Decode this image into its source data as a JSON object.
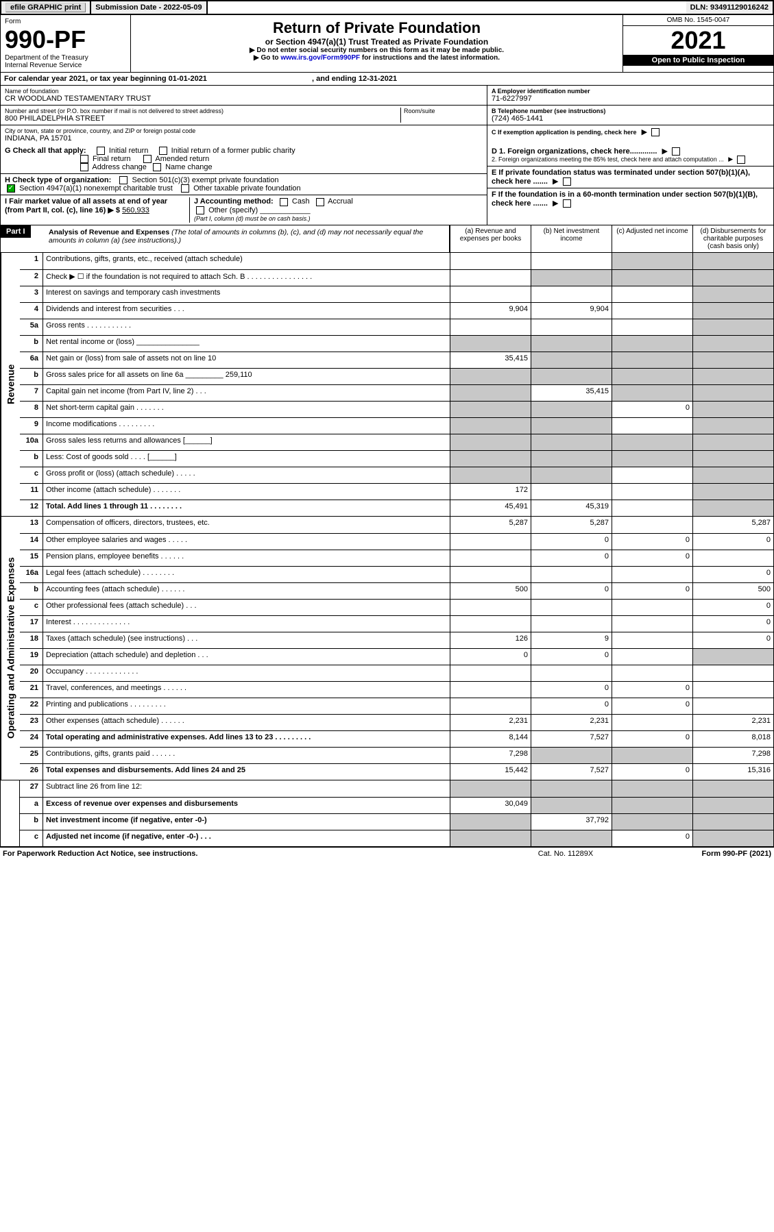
{
  "topBar": {
    "efile": "efile GRAPHIC print",
    "submission": "Submission Date - 2022-05-09",
    "dln": "DLN: 93491129016242"
  },
  "header": {
    "formWord": "Form",
    "formNum": "990-PF",
    "dept": "Department of the Treasury",
    "irs": "Internal Revenue Service",
    "title": "Return of Private Foundation",
    "subtitle": "or Section 4947(a)(1) Trust Treated as Private Foundation",
    "line1": "Do not enter social security numbers on this form as it may be made public.",
    "line2a": "Go to ",
    "line2link": "www.irs.gov/Form990PF",
    "line2b": " for instructions and the latest information.",
    "omb": "OMB No. 1545-0047",
    "year": "2021",
    "open": "Open to Public Inspection"
  },
  "calYear": {
    "textA": "For calendar year 2021, or tax year beginning ",
    "begin": "01-01-2021",
    "textB": ", and ending ",
    "end": "12-31-2021"
  },
  "entity": {
    "nameLabel": "Name of foundation",
    "name": "CR WOODLAND TESTAMENTARY TRUST",
    "addrLabel": "Number and street (or P.O. box number if mail is not delivered to street address)",
    "addr": "800 PHILADELPHIA STREET",
    "roomLabel": "Room/suite",
    "cityLabel": "City or town, state or province, country, and ZIP or foreign postal code",
    "city": "INDIANA, PA  15701",
    "aLabel": "A Employer identification number",
    "ein": "71-6227997",
    "bLabel": "B Telephone number (see instructions)",
    "phone": "(724) 465-1441",
    "cLabel": "C If exemption application is pending, check here"
  },
  "checks": {
    "gLabel": "G Check all that apply:",
    "g1": "Initial return",
    "g2": "Initial return of a former public charity",
    "g3": "Final return",
    "g4": "Amended return",
    "g5": "Address change",
    "g6": "Name change",
    "hLabel": "H Check type of organization:",
    "h1": "Section 501(c)(3) exempt private foundation",
    "h2": "Section 4947(a)(1) nonexempt charitable trust",
    "h3": "Other taxable private foundation",
    "iLabel": "I Fair market value of all assets at end of year (from Part II, col. (c), line 16) ▶ $",
    "iVal": "560,933",
    "jLabel": "J Accounting method:",
    "j1": "Cash",
    "j2": "Accrual",
    "j3": "Other (specify)",
    "jNote": "(Part I, column (d) must be on cash basis.)",
    "d1": "D 1. Foreign organizations, check here.............",
    "d2": "   2. Foreign organizations meeting the 85% test, check here and attach computation ...",
    "eLabel": "E  If private foundation status was terminated under section 507(b)(1)(A), check here .......",
    "fLabel": "F  If the foundation is in a 60-month termination under section 507(b)(1)(B), check here ......."
  },
  "part1": {
    "label": "Part I",
    "title": "Analysis of Revenue and Expenses",
    "titleNote": " (The total of amounts in columns (b), (c), and (d) may not necessarily equal the amounts in column (a) (see instructions).)",
    "colA": "(a)  Revenue and expenses per books",
    "colB": "(b)  Net investment income",
    "colC": "(c)  Adjusted net income",
    "colD": "(d)  Disbursements for charitable purposes (cash basis only)"
  },
  "sideLabels": {
    "rev": "Revenue",
    "exp": "Operating and Administrative Expenses"
  },
  "rows": [
    {
      "n": "1",
      "d": "Contributions, gifts, grants, etc., received (attach schedule)",
      "a": "",
      "b": "",
      "c": "s",
      "dd": "s"
    },
    {
      "n": "2",
      "d": "Check ▶ ☐ if the foundation is not required to attach Sch. B   .  .  .  .  .  .  .  .  .  .  .  .  .  .  .  .",
      "a": "",
      "b": "s",
      "c": "s",
      "dd": "s",
      "nb": true
    },
    {
      "n": "3",
      "d": "Interest on savings and temporary cash investments",
      "a": "",
      "b": "",
      "c": "",
      "dd": "s"
    },
    {
      "n": "4",
      "d": "Dividends and interest from securities    .   .   .",
      "a": "9,904",
      "b": "9,904",
      "c": "",
      "dd": "s"
    },
    {
      "n": "5a",
      "d": "Gross rents   .   .   .   .   .   .   .   .   .   .   .",
      "a": "",
      "b": "",
      "c": "",
      "dd": "s"
    },
    {
      "n": "b",
      "d": "Net rental income or (loss)  _______________",
      "a": "s",
      "b": "s",
      "c": "s",
      "dd": "s"
    },
    {
      "n": "6a",
      "d": "Net gain or (loss) from sale of assets not on line 10",
      "a": "35,415",
      "b": "s",
      "c": "s",
      "dd": "s"
    },
    {
      "n": "b",
      "d": "Gross sales price for all assets on line 6a _________ 259,110",
      "a": "s",
      "b": "s",
      "c": "s",
      "dd": "s"
    },
    {
      "n": "7",
      "d": "Capital gain net income (from Part IV, line 2)    .   .   .",
      "a": "s",
      "b": "35,415",
      "c": "s",
      "dd": "s"
    },
    {
      "n": "8",
      "d": "Net short-term capital gain   .   .   .   .   .   .   .",
      "a": "s",
      "b": "s",
      "c": "0",
      "dd": "s"
    },
    {
      "n": "9",
      "d": "Income modifications  .   .   .   .   .   .   .   .   .",
      "a": "s",
      "b": "s",
      "c": "",
      "dd": "s"
    },
    {
      "n": "10a",
      "d": "Gross sales less returns and allowances  [______]",
      "a": "s",
      "b": "s",
      "c": "s",
      "dd": "s"
    },
    {
      "n": "b",
      "d": "Less: Cost of goods sold    .   .   .   .   [______]",
      "a": "s",
      "b": "s",
      "c": "s",
      "dd": "s"
    },
    {
      "n": "c",
      "d": "Gross profit or (loss) (attach schedule)    .   .   .   .   .",
      "a": "s",
      "b": "s",
      "c": "",
      "dd": "s"
    },
    {
      "n": "11",
      "d": "Other income (attach schedule)    .   .   .   .   .   .   .",
      "a": "172",
      "b": "",
      "c": "",
      "dd": "s"
    },
    {
      "n": "12",
      "d": "Total. Add lines 1 through 11   .   .   .   .   .   .   .   .",
      "a": "45,491",
      "b": "45,319",
      "c": "",
      "dd": "s",
      "bold": true
    }
  ],
  "rowsExp": [
    {
      "n": "13",
      "d": "Compensation of officers, directors, trustees, etc.",
      "a": "5,287",
      "b": "5,287",
      "c": "",
      "dd": "5,287"
    },
    {
      "n": "14",
      "d": "Other employee salaries and wages    .   .   .   .   .",
      "a": "",
      "b": "0",
      "c": "0",
      "dd": "0"
    },
    {
      "n": "15",
      "d": "Pension plans, employee benefits  .   .   .   .   .   .",
      "a": "",
      "b": "0",
      "c": "0",
      "dd": ""
    },
    {
      "n": "16a",
      "d": "Legal fees (attach schedule)  .   .   .   .   .   .   .   .",
      "a": "",
      "b": "",
      "c": "",
      "dd": "0"
    },
    {
      "n": "b",
      "d": "Accounting fees (attach schedule)  .   .   .   .   .   .",
      "a": "500",
      "b": "0",
      "c": "0",
      "dd": "500"
    },
    {
      "n": "c",
      "d": "Other professional fees (attach schedule)    .   .   .",
      "a": "",
      "b": "",
      "c": "",
      "dd": "0"
    },
    {
      "n": "17",
      "d": "Interest .   .   .   .   .   .   .   .   .   .   .   .   .   .",
      "a": "",
      "b": "",
      "c": "",
      "dd": "0"
    },
    {
      "n": "18",
      "d": "Taxes (attach schedule) (see instructions)    .   .   .",
      "a": "126",
      "b": "9",
      "c": "",
      "dd": "0"
    },
    {
      "n": "19",
      "d": "Depreciation (attach schedule) and depletion   .   .   .",
      "a": "0",
      "b": "0",
      "c": "",
      "dd": "s"
    },
    {
      "n": "20",
      "d": "Occupancy  .   .   .   .   .   .   .   .   .   .   .   .   .",
      "a": "",
      "b": "",
      "c": "",
      "dd": ""
    },
    {
      "n": "21",
      "d": "Travel, conferences, and meetings  .   .   .   .   .   .",
      "a": "",
      "b": "0",
      "c": "0",
      "dd": ""
    },
    {
      "n": "22",
      "d": "Printing and publications  .   .   .   .   .   .   .   .   .",
      "a": "",
      "b": "0",
      "c": "0",
      "dd": ""
    },
    {
      "n": "23",
      "d": "Other expenses (attach schedule)  .   .   .   .   .   .",
      "a": "2,231",
      "b": "2,231",
      "c": "",
      "dd": "2,231"
    },
    {
      "n": "24",
      "d": "Total operating and administrative expenses. Add lines 13 to 23   .   .   .   .   .   .   .   .   .",
      "a": "8,144",
      "b": "7,527",
      "c": "0",
      "dd": "8,018",
      "bold": true
    },
    {
      "n": "25",
      "d": "Contributions, gifts, grants paid    .   .   .   .   .   .",
      "a": "7,298",
      "b": "s",
      "c": "s",
      "dd": "7,298"
    },
    {
      "n": "26",
      "d": "Total expenses and disbursements. Add lines 24 and 25",
      "a": "15,442",
      "b": "7,527",
      "c": "0",
      "dd": "15,316",
      "bold": true
    }
  ],
  "rows27": [
    {
      "n": "27",
      "d": "Subtract line 26 from line 12:",
      "a": "s",
      "b": "s",
      "c": "s",
      "dd": "s"
    },
    {
      "n": "a",
      "d": "Excess of revenue over expenses and disbursements",
      "a": "30,049",
      "b": "s",
      "c": "s",
      "dd": "s",
      "bold": true
    },
    {
      "n": "b",
      "d": "Net investment income (if negative, enter -0-)",
      "a": "s",
      "b": "37,792",
      "c": "s",
      "dd": "s",
      "bold": true
    },
    {
      "n": "c",
      "d": "Adjusted net income (if negative, enter -0-)   .   .   .",
      "a": "s",
      "b": "s",
      "c": "0",
      "dd": "s",
      "bold": true
    }
  ],
  "footer": {
    "left": "For Paperwork Reduction Act Notice, see instructions.",
    "mid": "Cat. No. 11289X",
    "right": "Form 990-PF (2021)"
  }
}
